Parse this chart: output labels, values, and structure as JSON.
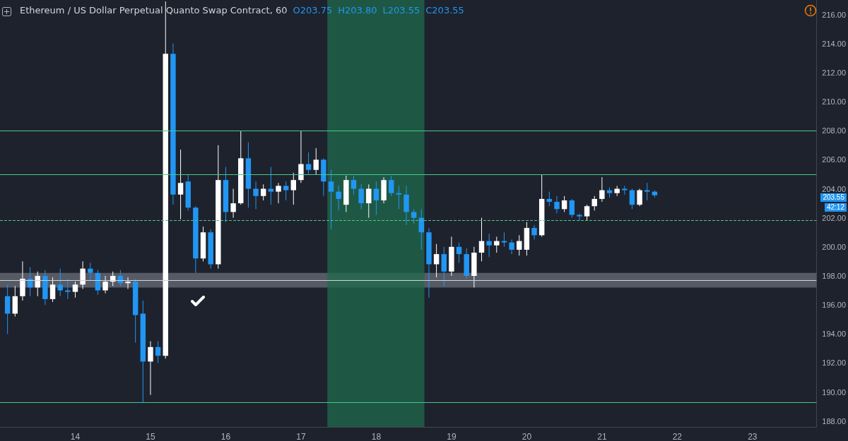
{
  "chart_data": {
    "type": "candlestick",
    "title": "Ethereum / US Dollar Perpetual Quanto Swap Contract, 60",
    "x": [
      13.1,
      13.2,
      13.3,
      13.4,
      13.5,
      13.6,
      13.7,
      13.8,
      13.9,
      14.0,
      14.1,
      14.2,
      14.3,
      14.4,
      14.5,
      14.6,
      14.7,
      14.8,
      14.9,
      15.0,
      15.1,
      15.2,
      15.3,
      15.4,
      15.5,
      15.6,
      15.7,
      15.8,
      15.9,
      16.0,
      16.1,
      16.2,
      16.3,
      16.4,
      16.5,
      16.6,
      16.7,
      16.8,
      16.9,
      17.0,
      17.1,
      17.2,
      17.3,
      17.4,
      17.5,
      17.6,
      17.7,
      17.8,
      17.9,
      18.0,
      18.1,
      18.2,
      18.3,
      18.4,
      18.5,
      18.6,
      18.7,
      18.8,
      18.9,
      19.0,
      19.1,
      19.2,
      19.3,
      19.4,
      19.5,
      19.6,
      19.7,
      19.8,
      19.9,
      20.0,
      20.1,
      20.2,
      20.3,
      20.4,
      20.5,
      20.6,
      20.7,
      20.8,
      20.9,
      21.0,
      21.1,
      21.2,
      21.3,
      21.4,
      21.5,
      21.6,
      21.7
    ],
    "ohlc": [
      [
        196.6,
        197.4,
        194.0,
        195.4
      ],
      [
        195.4,
        197.3,
        195.2,
        196.6
      ],
      [
        196.6,
        199.0,
        196.3,
        197.8
      ],
      [
        197.8,
        198.6,
        196.6,
        197.2
      ],
      [
        197.2,
        198.3,
        196.6,
        198.0
      ],
      [
        198.0,
        198.4,
        196.0,
        196.4
      ],
      [
        196.4,
        197.9,
        196.2,
        197.4
      ],
      [
        197.4,
        198.5,
        196.6,
        197.0
      ],
      [
        197.0,
        197.8,
        196.4,
        196.9
      ],
      [
        196.9,
        197.6,
        196.5,
        197.4
      ],
      [
        197.4,
        199.0,
        197.1,
        198.5
      ],
      [
        198.5,
        198.9,
        197.7,
        198.2
      ],
      [
        198.2,
        198.4,
        196.7,
        197.0
      ],
      [
        197.0,
        198.0,
        196.8,
        197.6
      ],
      [
        197.6,
        198.3,
        197.3,
        198.0
      ],
      [
        198.0,
        198.4,
        197.3,
        197.5
      ],
      [
        197.5,
        197.9,
        197.1,
        197.6
      ],
      [
        197.6,
        197.8,
        193.4,
        195.3
      ],
      [
        195.4,
        196.3,
        189.3,
        192.1
      ],
      [
        192.1,
        193.5,
        189.8,
        193.1
      ],
      [
        193.1,
        193.5,
        192.0,
        192.5
      ],
      [
        192.5,
        216.9,
        192.3,
        213.3
      ],
      [
        213.3,
        214.0,
        202.9,
        203.6
      ],
      [
        203.6,
        206.7,
        201.9,
        204.4
      ],
      [
        204.5,
        205.0,
        202.5,
        202.7
      ],
      [
        202.7,
        202.8,
        198.2,
        199.2
      ],
      [
        199.2,
        201.4,
        199.0,
        201.0
      ],
      [
        201.0,
        201.2,
        198.5,
        198.8
      ],
      [
        198.8,
        207.0,
        198.5,
        204.6
      ],
      [
        204.6,
        205.5,
        201.7,
        202.4
      ],
      [
        202.4,
        204.0,
        202.0,
        203.0
      ],
      [
        203.0,
        208.0,
        202.9,
        206.1
      ],
      [
        206.1,
        207.2,
        202.7,
        204.0
      ],
      [
        204.0,
        204.5,
        202.6,
        203.5
      ],
      [
        203.5,
        204.3,
        203.2,
        204.0
      ],
      [
        204.0,
        205.5,
        202.9,
        203.8
      ],
      [
        203.8,
        204.4,
        203.0,
        204.2
      ],
      [
        204.2,
        204.5,
        203.2,
        203.9
      ],
      [
        203.9,
        205.1,
        202.9,
        204.6
      ],
      [
        204.6,
        208.0,
        204.4,
        205.7
      ],
      [
        205.7,
        206.5,
        205.0,
        205.3
      ],
      [
        205.3,
        206.8,
        205.0,
        206.0
      ],
      [
        206.0,
        206.1,
        203.5,
        204.5
      ],
      [
        204.5,
        205.3,
        201.2,
        203.8
      ],
      [
        203.8,
        204.2,
        202.5,
        203.3
      ],
      [
        202.9,
        204.9,
        202.4,
        204.6
      ],
      [
        204.6,
        204.9,
        203.6,
        204.0
      ],
      [
        204.0,
        204.3,
        202.6,
        203.0
      ],
      [
        203.0,
        204.3,
        202.0,
        204.0
      ],
      [
        204.0,
        204.5,
        202.2,
        203.2
      ],
      [
        203.2,
        204.8,
        203.0,
        204.6
      ],
      [
        204.6,
        204.9,
        203.5,
        203.7
      ],
      [
        203.7,
        204.2,
        202.6,
        203.6
      ],
      [
        203.6,
        204.2,
        201.5,
        202.4
      ],
      [
        202.4,
        202.6,
        201.6,
        202.0
      ],
      [
        202.0,
        202.6,
        199.8,
        201.0
      ],
      [
        201.0,
        201.3,
        196.5,
        198.8
      ],
      [
        198.8,
        200.2,
        197.9,
        199.5
      ],
      [
        199.5,
        200.0,
        197.3,
        198.3
      ],
      [
        198.3,
        200.7,
        198.0,
        200.0
      ],
      [
        200.0,
        200.3,
        198.9,
        199.5
      ],
      [
        199.5,
        199.9,
        197.8,
        198.0
      ],
      [
        198.0,
        200.0,
        197.2,
        199.6
      ],
      [
        199.6,
        202.0,
        199.0,
        200.4
      ],
      [
        200.4,
        200.9,
        199.3,
        200.1
      ],
      [
        200.1,
        200.7,
        199.6,
        200.4
      ],
      [
        200.4,
        201.0,
        200.0,
        200.3
      ],
      [
        200.3,
        200.5,
        199.5,
        199.8
      ],
      [
        199.8,
        200.8,
        199.4,
        200.4
      ],
      [
        199.8,
        201.7,
        199.4,
        201.3
      ],
      [
        201.3,
        201.5,
        200.5,
        200.8
      ],
      [
        200.8,
        205.0,
        200.7,
        203.3
      ],
      [
        203.3,
        203.8,
        202.8,
        203.1
      ],
      [
        203.1,
        203.5,
        202.3,
        202.6
      ],
      [
        202.6,
        203.5,
        202.4,
        203.2
      ],
      [
        203.2,
        203.3,
        202.0,
        202.2
      ],
      [
        202.2,
        202.3,
        201.8,
        202.1
      ],
      [
        202.1,
        202.9,
        201.8,
        202.8
      ],
      [
        202.8,
        203.5,
        202.5,
        203.3
      ],
      [
        203.3,
        204.8,
        203.1,
        203.9
      ],
      [
        203.9,
        204.1,
        203.4,
        203.7
      ],
      [
        203.7,
        204.2,
        203.5,
        204.0
      ],
      [
        204.0,
        204.2,
        203.6,
        203.9
      ],
      [
        203.9,
        204.0,
        202.6,
        202.9
      ],
      [
        202.9,
        204.0,
        202.8,
        203.9
      ],
      [
        203.9,
        204.4,
        203.2,
        203.8
      ],
      [
        203.8,
        203.9,
        203.4,
        203.55
      ]
    ],
    "colors": [
      "#2196f3",
      "#ffffff",
      "#ffffff",
      "#2196f3",
      "#ffffff",
      "#2196f3",
      "#ffffff",
      "#2196f3",
      "#2196f3",
      "#ffffff",
      "#ffffff",
      "#2196f3",
      "#2196f3",
      "#ffffff",
      "#ffffff",
      "#2196f3",
      "#ffffff",
      "#2196f3",
      "#2196f3",
      "#ffffff",
      "#2196f3",
      "#ffffff",
      "#2196f3",
      "#ffffff",
      "#2196f3",
      "#2196f3",
      "#ffffff",
      "#2196f3",
      "#ffffff",
      "#2196f3",
      "#ffffff",
      "#ffffff",
      "#2196f3",
      "#2196f3",
      "#ffffff",
      "#2196f3",
      "#ffffff",
      "#2196f3",
      "#ffffff",
      "#ffffff",
      "#2196f3",
      "#ffffff",
      "#2196f3",
      "#2196f3",
      "#2196f3",
      "#ffffff",
      "#2196f3",
      "#2196f3",
      "#ffffff",
      "#2196f3",
      "#ffffff",
      "#2196f3",
      "#2196f3",
      "#2196f3",
      "#2196f3",
      "#2196f3",
      "#2196f3",
      "#ffffff",
      "#2196f3",
      "#ffffff",
      "#2196f3",
      "#2196f3",
      "#ffffff",
      "#ffffff",
      "#2196f3",
      "#ffffff",
      "#2196f3",
      "#2196f3",
      "#ffffff",
      "#ffffff",
      "#2196f3",
      "#ffffff",
      "#2196f3",
      "#2196f3",
      "#ffffff",
      "#2196f3",
      "#2196f3",
      "#ffffff",
      "#ffffff",
      "#ffffff",
      "#2196f3",
      "#ffffff",
      "#2196f3",
      "#2196f3",
      "#ffffff",
      "#2196f3",
      "#2196f3"
    ],
    "xlim": [
      13.0,
      23.85
    ],
    "xticks": [
      14,
      15,
      16,
      17,
      18,
      19,
      20,
      21,
      22,
      23
    ],
    "ylim": [
      187.6,
      217.0
    ],
    "yticks": [
      {
        "value": 188,
        "label": "188.00"
      },
      {
        "value": 190,
        "label": "190.00"
      },
      {
        "value": 192,
        "label": "192.00"
      },
      {
        "value": 194,
        "label": "194.00"
      },
      {
        "value": 196,
        "label": "196.00"
      },
      {
        "value": 198,
        "label": "198.00"
      },
      {
        "value": 200,
        "label": "200.00"
      },
      {
        "value": 202,
        "label": "202.00"
      },
      {
        "value": 204,
        "label": "204.00"
      },
      {
        "value": 206,
        "label": "206.00"
      },
      {
        "value": 208,
        "label": "208.00"
      },
      {
        "value": 210,
        "label": "210.00"
      },
      {
        "value": 212,
        "label": "212.00"
      },
      {
        "value": 214,
        "label": "214.00"
      },
      {
        "value": 216,
        "label": "216.00"
      }
    ],
    "ref_lines": [
      {
        "axis": "y",
        "value": 208,
        "color": "#43c98d"
      },
      {
        "axis": "y",
        "value": 205,
        "color": "#43c98d"
      },
      {
        "axis": "y",
        "value": 201.85,
        "color": "#43c98d",
        "line_style": "dashed"
      },
      {
        "axis": "y",
        "value": 189.3,
        "color": "#43c98d"
      },
      {
        "axis": "y",
        "value": 197.7,
        "color": "#d1d4dc"
      }
    ],
    "bands": [
      {
        "axis": "y",
        "from": 197.2,
        "to": 198.2,
        "color": "#6a6d78"
      },
      {
        "axis": "x",
        "from": 17.35,
        "to": 18.64,
        "color": "#1f6b4c"
      }
    ],
    "annotations": [
      "O203.75",
      "H203.80",
      "L203.55",
      "C203.55",
      "203.55",
      "42:12"
    ]
  }
}
